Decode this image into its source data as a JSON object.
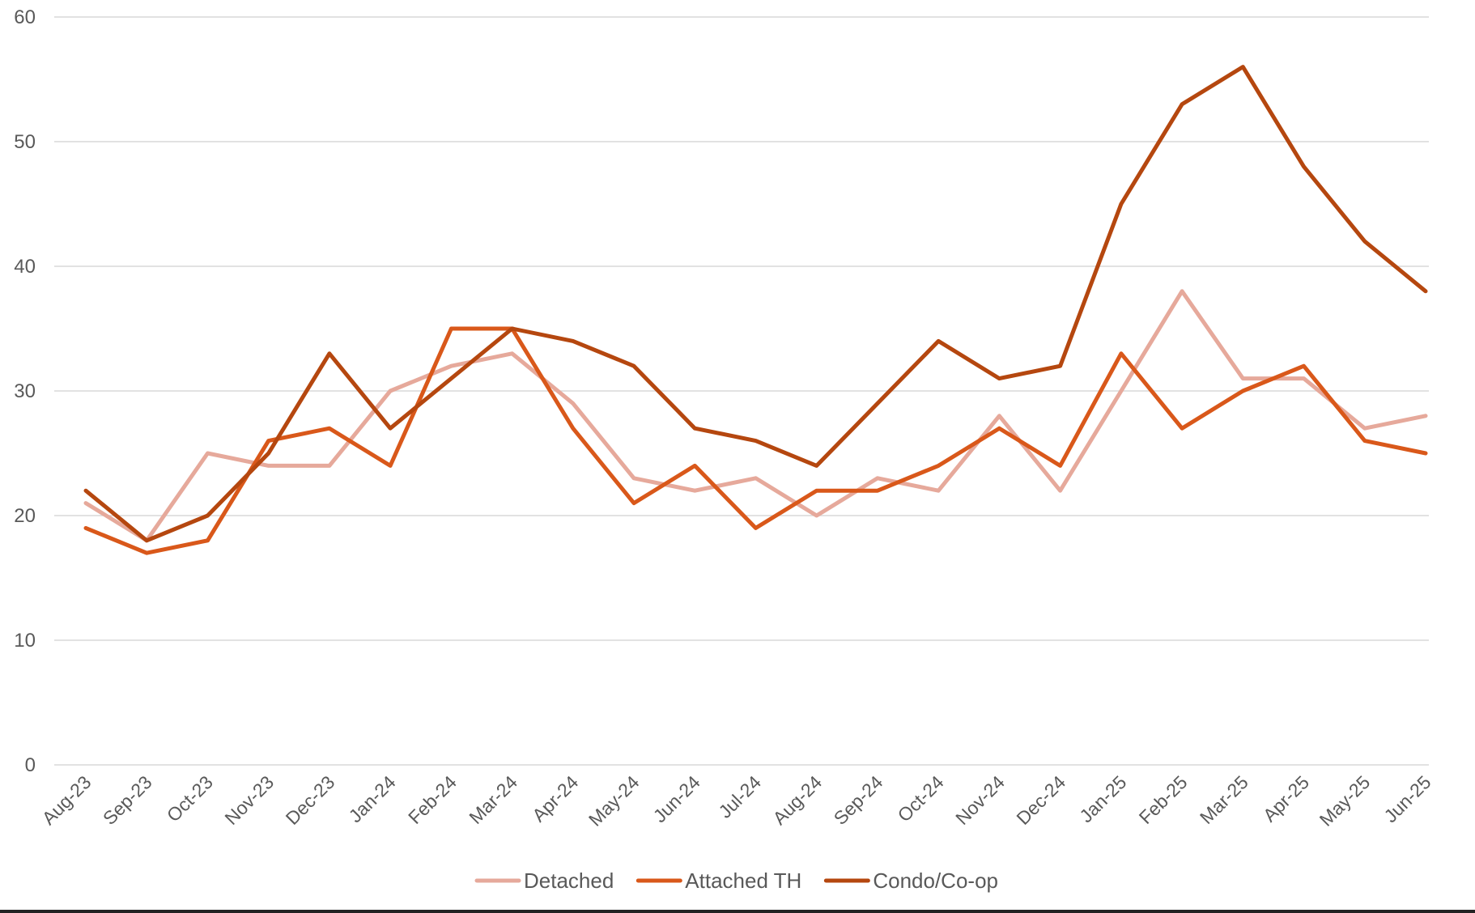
{
  "chart_data": {
    "type": "line",
    "title": "",
    "xlabel": "",
    "ylabel": "",
    "ylim": [
      0,
      60
    ],
    "yticks": [
      0,
      10,
      20,
      30,
      40,
      50,
      60
    ],
    "grid": true,
    "legend_position": "bottom",
    "categories": [
      "Aug-23",
      "Sep-23",
      "Oct-23",
      "Nov-23",
      "Dec-23",
      "Jan-24",
      "Feb-24",
      "Mar-24",
      "Apr-24",
      "May-24",
      "Jun-24",
      "Jul-24",
      "Aug-24",
      "Sep-24",
      "Oct-24",
      "Nov-24",
      "Dec-24",
      "Jan-25",
      "Feb-25",
      "Mar-25",
      "Apr-25",
      "May-25",
      "Jun-25"
    ],
    "series": [
      {
        "name": "Detached",
        "color": "#e6a99b",
        "values": [
          21,
          18,
          25,
          24,
          24,
          30,
          32,
          33,
          29,
          23,
          22,
          23,
          20,
          23,
          22,
          28,
          22,
          30,
          38,
          31,
          31,
          27,
          28
        ]
      },
      {
        "name": "Attached TH",
        "color": "#d9581a",
        "values": [
          19,
          17,
          18,
          26,
          27,
          24,
          35,
          35,
          27,
          21,
          24,
          19,
          22,
          22,
          24,
          27,
          24,
          33,
          27,
          30,
          32,
          26,
          25
        ]
      },
      {
        "name": "Condo/Co-op",
        "color": "#b5470f",
        "values": [
          22,
          18,
          20,
          25,
          33,
          27,
          31,
          35,
          34,
          32,
          27,
          26,
          24,
          29,
          34,
          31,
          32,
          45,
          53,
          56,
          48,
          42,
          38
        ]
      }
    ]
  }
}
